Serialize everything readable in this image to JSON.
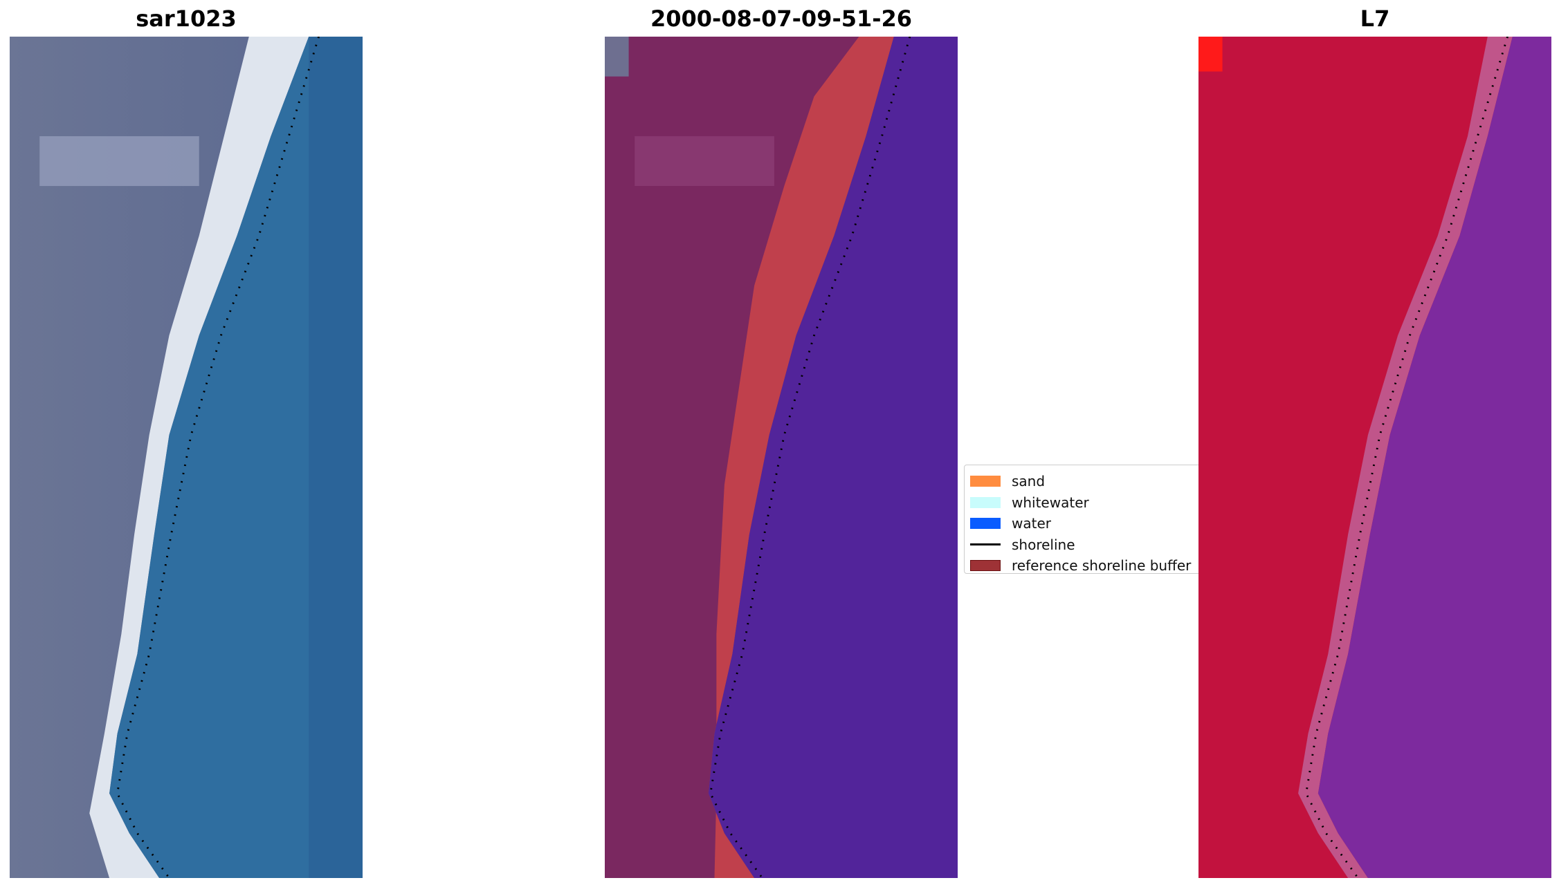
{
  "panels": [
    {
      "title": "sar1023",
      "colors": {
        "land": "#6b7595",
        "sand": "#e8ecf2",
        "water": "#2f6ea0"
      }
    },
    {
      "title": "2000-08-07-09-51-26",
      "colors": {
        "land": "#7a2860",
        "buffer": "#c0404c",
        "water": "#52249a"
      }
    },
    {
      "title": "L7",
      "colors": {
        "land": "#c2123e",
        "transition": "#c0558a",
        "water": "#7d2a9e"
      }
    }
  ],
  "legend": {
    "items": [
      {
        "label": "sand",
        "color": "#ff8c3f",
        "type": "patch"
      },
      {
        "label": "whitewater",
        "color": "#c8fcfc",
        "type": "patch"
      },
      {
        "label": "water",
        "color": "#0a5cff",
        "type": "patch"
      },
      {
        "label": "shoreline",
        "color": "#000000",
        "type": "line"
      },
      {
        "label": "reference shoreline buffer",
        "color": "#9e3236",
        "type": "patch"
      }
    ]
  }
}
